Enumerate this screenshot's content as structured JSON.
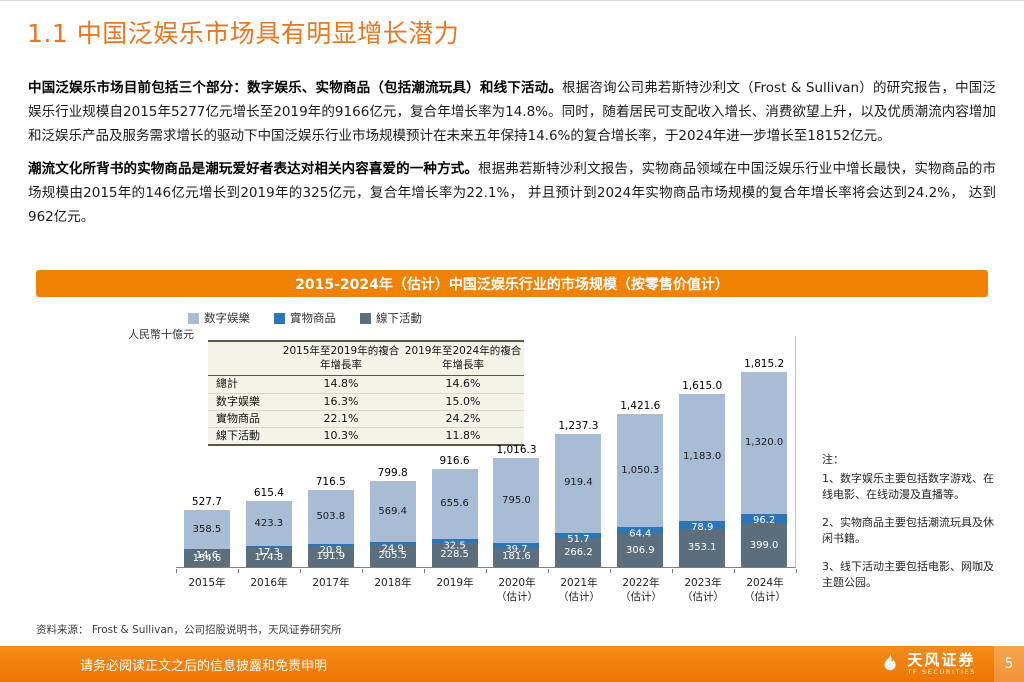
{
  "page": {
    "title": "1.1 中国泛娱乐市场具有明显增长潜力"
  },
  "paragraphs": [
    {
      "lead": "中国泛娱乐市场目前包括三个部分：数字娱乐、实物商品（包括潮流玩具）和线下活动。",
      "body": "根据咨询公司弗若斯特沙利文（Frost & Sullivan）的研究报告，中国泛娱乐行业规模自2015年5277亿元增长至2019年的9166亿元，复合年增长率为14.8%。同时，随着居民可支配收入增长、消费欲望上升，以及优质潮流内容增加和泛娱乐产品及服务需求增长的驱动下中国泛娱乐行业市场规模预计在未来五年保持14.6%的复合增长率，于2024年进一步增长至18152亿元。"
    },
    {
      "lead": "潮流文化所背书的实物商品是潮玩爱好者表达对相关内容喜爱的一种方式。",
      "body": "根据弗若斯特沙利文报告，实物商品领域在中国泛娱乐行业中增长最快，实物商品的市场规模由2015年的146亿元增长到2019年的325亿元，复合年增长率为22.1%， 并且预计到2024年实物商品市场规模的复合年增长率将会达到24.2%， 达到962亿元。"
    }
  ],
  "chart_data": {
    "type": "bar",
    "stacked": true,
    "title": "2015-2024年（估计）中国泛娱乐行业的市场规模（按零售价值计）",
    "unit_label": "人民幣十億元",
    "legend_position": "top",
    "grid": false,
    "ylim": [
      0,
      1900
    ],
    "categories": [
      "2015年",
      "2016年",
      "2017年",
      "2018年",
      "2019年",
      "2020年（估计）",
      "2021年（估计）",
      "2022年（估计）",
      "2023年（估计）",
      "2024年（估计）"
    ],
    "series": [
      {
        "name": "数字娱樂",
        "color": "#A9BCD6",
        "label_color": "#1a1a1a",
        "values": [
          358.5,
          423.3,
          503.8,
          569.4,
          655.6,
          795.0,
          919.4,
          1050.3,
          1183.0,
          1320.0
        ]
      },
      {
        "name": "實物商品",
        "color": "#2E75B6",
        "label_color": "#ffffff",
        "values": [
          14.6,
          17.3,
          20.8,
          24.9,
          32.5,
          39.7,
          51.7,
          64.4,
          78.9,
          96.2
        ]
      },
      {
        "name": "線下活動",
        "color": "#5B6E7E",
        "label_color": "#ffffff",
        "values": [
          154.6,
          174.8,
          191.9,
          205.5,
          228.5,
          181.6,
          266.2,
          306.9,
          353.1,
          399.0
        ]
      }
    ],
    "totals": [
      527.7,
      615.4,
      716.5,
      799.8,
      916.6,
      1016.3,
      1237.3,
      1421.6,
      1615.0,
      1815.2
    ],
    "cagr_table": {
      "col_headers": [
        "2015年至2019年的複合年增長率",
        "2019年至2024年的複合年增長率"
      ],
      "rows": [
        {
          "label": "總計",
          "c1": "14.8%",
          "c2": "14.6%"
        },
        {
          "label": "数字娱樂",
          "c1": "16.3%",
          "c2": "15.0%"
        },
        {
          "label": "實物商品",
          "c1": "22.1%",
          "c2": "24.2%"
        },
        {
          "label": "線下活動",
          "c1": "10.3%",
          "c2": "11.8%"
        }
      ]
    }
  },
  "notes": {
    "label": "注：",
    "items": [
      "1、数字娱乐主要包括数字游戏、在线电影、在线动漫及直播等。",
      "2、实物商品主要包括潮流玩具及休闲书籍。",
      "3、线下活动主要包括电影、网咖及主题公园。"
    ]
  },
  "source": "资料来源： Frost & Sullivan，公司招股说明书，天风证券研究所",
  "footer": {
    "disclaimer": "请务必阅读正文之后的信息披露和免责申明",
    "brand_cn": "天风证券",
    "brand_en": "TF SECURITIES",
    "page_number": "5"
  },
  "colors": {
    "accent_orange": "#F18101",
    "title_orange": "#E87722",
    "digital_blue": "#A9BCD6",
    "goods_blue": "#2E75B6",
    "offline_slate": "#5B6E7E"
  }
}
